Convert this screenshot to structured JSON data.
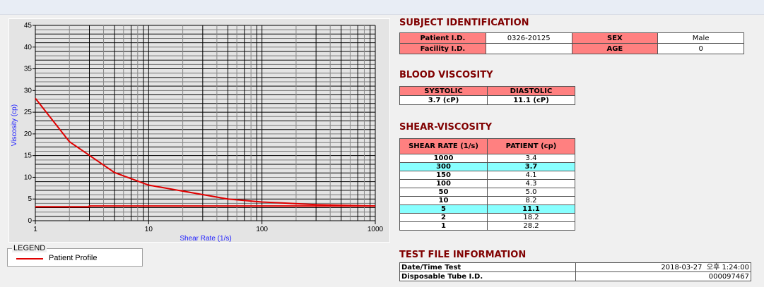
{
  "chart_data": {
    "type": "line",
    "xlabel": "Shear Rate (1/s)",
    "ylabel": "Viscosity (cp)",
    "x_scale": "log",
    "xlim": [
      1,
      1000
    ],
    "ylim": [
      0,
      45
    ],
    "x_ticks": [
      "1",
      "10",
      "100",
      "1000"
    ],
    "y_ticks": [
      "0",
      "5",
      "10",
      "15",
      "20",
      "25",
      "30",
      "35",
      "40",
      "45"
    ],
    "grid": true,
    "legend_position": "bottom-left",
    "series": [
      {
        "name": "Patient Profile",
        "color": "#e00000",
        "x": [
          1,
          2,
          5,
          10,
          50,
          100,
          150,
          300,
          1000
        ],
        "y": [
          28.2,
          18.2,
          11.1,
          8.2,
          5.0,
          4.3,
          4.1,
          3.7,
          3.4
        ]
      },
      {
        "color": "#e00000",
        "x": [
          1,
          3,
          3,
          1000
        ],
        "y": [
          3.2,
          3.2,
          3.4,
          3.4
        ]
      }
    ]
  },
  "legend": {
    "title": "LEGEND",
    "item": "Patient Profile"
  },
  "subject": {
    "title": "SUBJECT IDENTIFICATION",
    "patient_id_label": "Patient I.D.",
    "patient_id": "0326-20125",
    "sex_label": "SEX",
    "sex": "Male",
    "facility_label": "Facility I.D.",
    "facility": "",
    "age_label": "AGE",
    "age": "0"
  },
  "blood": {
    "title": "BLOOD VISCOSITY",
    "systolic_label": "SYSTOLIC",
    "diastolic_label": "DIASTOLIC",
    "systolic": "3.7 (cP)",
    "diastolic": "11.1 (cP)"
  },
  "shear": {
    "title": "SHEAR-VISCOSITY",
    "col1": "SHEAR RATE (1/s)",
    "col2": "PATIENT (cp)",
    "rows": [
      [
        "1000",
        "3.4",
        false
      ],
      [
        "300",
        "3.7",
        true
      ],
      [
        "150",
        "4.1",
        false
      ],
      [
        "100",
        "4.3",
        false
      ],
      [
        "50",
        "5.0",
        false
      ],
      [
        "10",
        "8.2",
        false
      ],
      [
        "5",
        "11.1",
        true
      ],
      [
        "2",
        "18.2",
        false
      ],
      [
        "1",
        "28.2",
        false
      ]
    ],
    "highlight_color": "#88ffff"
  },
  "testfile": {
    "title": "TEST FILE INFORMATION",
    "date_label": "Date/Time Test",
    "date": "2018-03-27  오후 1:24:00",
    "tube_label": "Disposable Tube I.D.",
    "tube": "000097467"
  }
}
